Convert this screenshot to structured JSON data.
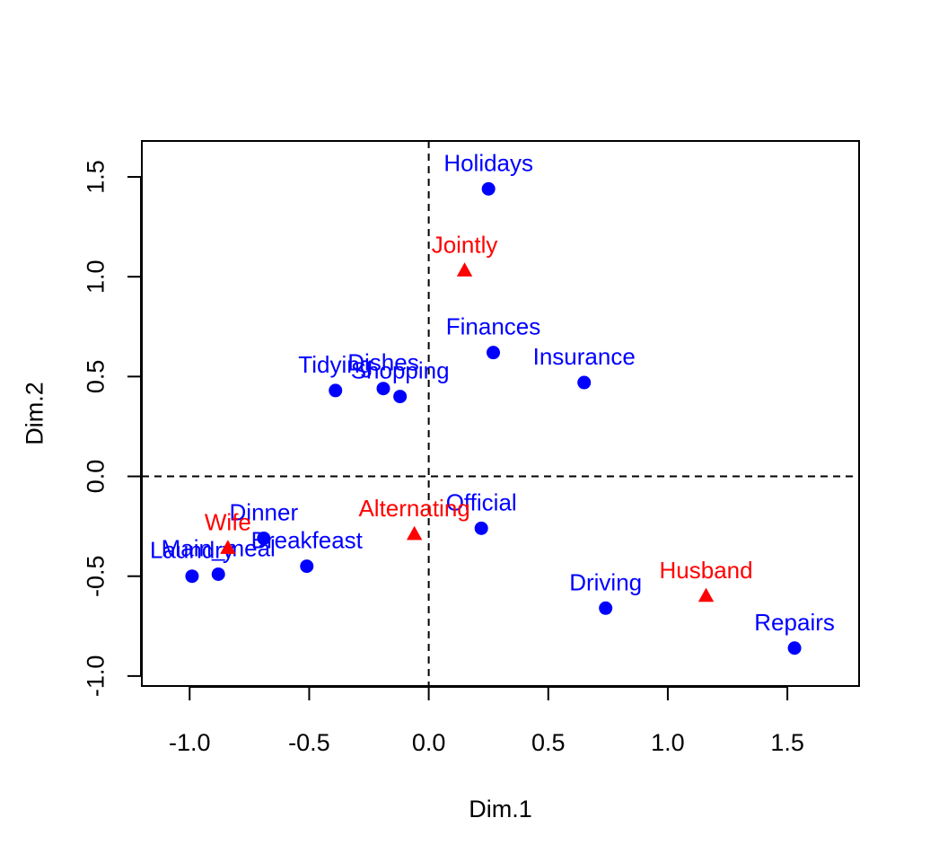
{
  "chart_data": {
    "type": "scatter",
    "title": "",
    "xlabel": "Dim.1",
    "ylabel": "Dim.2",
    "xlim": [
      -1.2,
      1.8
    ],
    "ylim": [
      -1.05,
      1.68
    ],
    "x_ticks": [
      -1.0,
      -0.5,
      0.0,
      0.5,
      1.0,
      1.5
    ],
    "x_tick_labels": [
      "-1.0",
      "-0.5",
      "0.0",
      "0.5",
      "1.0",
      "1.5"
    ],
    "y_ticks": [
      -1.0,
      -0.5,
      0.0,
      0.5,
      1.0,
      1.5
    ],
    "y_tick_labels": [
      "-1.0",
      "-0.5",
      "0.0",
      "0.5",
      "1.0",
      "1.5"
    ],
    "grid": false,
    "reference_lines": {
      "x": 0,
      "y": 0,
      "style": "dashed"
    },
    "series": [
      {
        "marker": "circle",
        "color": "#0000ff",
        "points": [
          {
            "label": "Laundry",
            "x": -0.99,
            "y": -0.5
          },
          {
            "label": "Main_meal",
            "x": -0.88,
            "y": -0.49
          },
          {
            "label": "Dinner",
            "x": -0.69,
            "y": -0.31
          },
          {
            "label": "Breakfeast",
            "x": -0.51,
            "y": -0.45
          },
          {
            "label": "Tidying",
            "x": -0.39,
            "y": 0.43
          },
          {
            "label": "Dishes",
            "x": -0.19,
            "y": 0.44
          },
          {
            "label": "Shopping",
            "x": -0.12,
            "y": 0.4
          },
          {
            "label": "Official",
            "x": 0.22,
            "y": -0.26
          },
          {
            "label": "Driving",
            "x": 0.74,
            "y": -0.66
          },
          {
            "label": "Finances",
            "x": 0.27,
            "y": 0.62
          },
          {
            "label": "Insurance",
            "x": 0.65,
            "y": 0.47
          },
          {
            "label": "Repairs",
            "x": 1.53,
            "y": -0.86
          },
          {
            "label": "Holidays",
            "x": 0.25,
            "y": 1.44
          }
        ]
      },
      {
        "marker": "triangle",
        "color": "#ff0000",
        "points": [
          {
            "label": "Wife",
            "x": -0.84,
            "y": -0.36
          },
          {
            "label": "Alternating",
            "x": -0.06,
            "y": -0.29
          },
          {
            "label": "Husband",
            "x": 1.16,
            "y": -0.6
          },
          {
            "label": "Jointly",
            "x": 0.15,
            "y": 1.03
          }
        ]
      }
    ]
  }
}
